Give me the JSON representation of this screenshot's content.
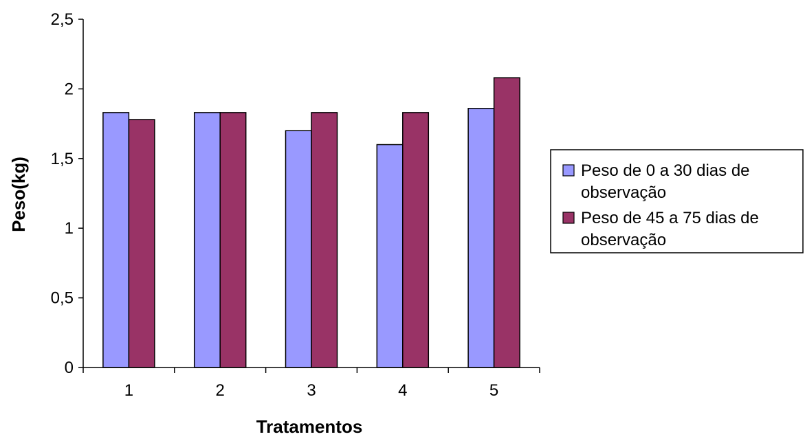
{
  "chart_data": {
    "type": "bar",
    "title": "",
    "xlabel": "Tratamentos",
    "ylabel": "Peso(kg)",
    "categories": [
      "1",
      "2",
      "3",
      "4",
      "5"
    ],
    "ylim": [
      0,
      2.5
    ],
    "yticks": [
      0,
      0.5,
      1,
      1.5,
      2,
      2.5
    ],
    "ytick_labels": [
      "0",
      "0,5",
      "1",
      "1,5",
      "2",
      "2,5"
    ],
    "grid": false,
    "legend_position": "right",
    "series": [
      {
        "name": "Peso de 0 a 30 dias de observação",
        "legend_lines": [
          "Peso de 0 a 30 dias de",
          "observação"
        ],
        "color": "#9999ff",
        "values": [
          1.83,
          1.83,
          1.7,
          1.6,
          1.86
        ]
      },
      {
        "name": "Peso de 45 a 75 dias de observação",
        "legend_lines": [
          "Peso de 45 a 75 dias de",
          "observação"
        ],
        "color": "#993366",
        "values": [
          1.78,
          1.83,
          1.83,
          1.83,
          2.08
        ]
      }
    ]
  }
}
